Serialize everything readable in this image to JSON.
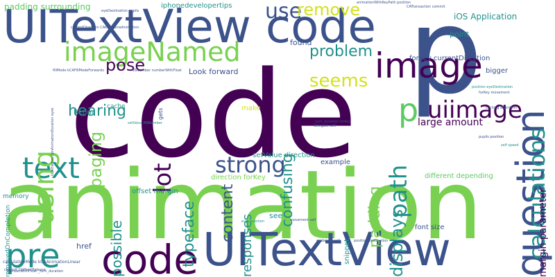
{
  "palette": {
    "dark_purple": "#440154",
    "indigo": "#3b528b",
    "teal": "#21918c",
    "green": "#5ec962",
    "lime": "#7ad151",
    "yellow": "#d2e21b"
  },
  "words": [
    {
      "text": "animation",
      "color": "#7ad151",
      "size": 138,
      "vertical": false
    },
    {
      "text": "code",
      "color": "#440154",
      "size": 172,
      "vertical": false
    },
    {
      "text": "p",
      "color": "#3b528b",
      "size": 170,
      "vertical": false
    },
    {
      "text": "UITextView code",
      "color": "#3b528b",
      "size": 66,
      "vertical": false
    },
    {
      "text": "UITextView",
      "color": "#3b528b",
      "size": 66,
      "vertical": false
    },
    {
      "text": "code",
      "color": "#440154",
      "size": 58,
      "vertical": false
    },
    {
      "text": "image",
      "color": "#440154",
      "size": 50,
      "vertical": false
    },
    {
      "text": "question",
      "color": "#3b528b",
      "size": 56,
      "vertical": true
    },
    {
      "text": "calculations",
      "color": "#21918c",
      "size": 32,
      "vertical": true
    },
    {
      "text": "imageNamed",
      "color": "#7ad151",
      "size": 38,
      "vertical": false
    },
    {
      "text": "text",
      "color": "#21918c",
      "size": 42,
      "vertical": false
    },
    {
      "text": "using",
      "color": "#7ad151",
      "size": 40,
      "vertical": true
    },
    {
      "text": "pre",
      "color": "#21918c",
      "size": 48,
      "vertical": false
    },
    {
      "text": "p",
      "color": "#5ec962",
      "size": 46,
      "vertical": false
    },
    {
      "text": "uiimage",
      "color": "#440154",
      "size": 34,
      "vertical": false
    },
    {
      "text": "path",
      "color": "#21918c",
      "size": 34,
      "vertical": true
    },
    {
      "text": "strong",
      "color": "#3b528b",
      "size": 32,
      "vertical": false
    },
    {
      "text": "use",
      "color": "#3b528b",
      "size": 30,
      "vertical": false
    },
    {
      "text": "remove",
      "color": "#d2e21b",
      "size": 24,
      "vertical": false
    },
    {
      "text": "seems",
      "color": "#d2e21b",
      "size": 26,
      "vertical": false
    },
    {
      "text": "problem",
      "color": "#21918c",
      "size": 22,
      "vertical": false
    },
    {
      "text": "pose",
      "color": "#440154",
      "size": 24,
      "vertical": false
    },
    {
      "text": "paging",
      "color": "#7ad151",
      "size": 24,
      "vertical": true
    },
    {
      "text": "hearing",
      "color": "#21918c",
      "size": 22,
      "vertical": false
    },
    {
      "text": "lot",
      "color": "#440154",
      "size": 34,
      "vertical": true
    },
    {
      "text": "confusing",
      "color": "#21918c",
      "size": 22,
      "vertical": true
    },
    {
      "text": "content",
      "color": "#3b528b",
      "size": 22,
      "vertical": true
    },
    {
      "text": "typeface",
      "color": "#21918c",
      "size": 22,
      "vertical": true
    },
    {
      "text": "padding",
      "color": "#7ad151",
      "size": 22,
      "vertical": true
    },
    {
      "text": "displays",
      "color": "#21918c",
      "size": 24,
      "vertical": true
    },
    {
      "text": "responses",
      "color": "#21918c",
      "size": 18,
      "vertical": true
    },
    {
      "text": "possible",
      "color": "#21918c",
      "size": 20,
      "vertical": true
    },
    {
      "text": "margin parameter",
      "color": "#440154",
      "size": 14,
      "vertical": true
    },
    {
      "text": "large amount",
      "color": "#440154",
      "size": 14,
      "vertical": false
    },
    {
      "text": "iOS Application",
      "color": "#21918c",
      "size": 12,
      "vertical": false
    },
    {
      "text": "padding surrounding",
      "color": "#5ec962",
      "size": 12,
      "vertical": false
    },
    {
      "text": "iphonedevelopertips",
      "color": "#21918c",
      "size": 10,
      "vertical": false
    },
    {
      "text": "point",
      "color": "#21918c",
      "size": 11,
      "vertical": false
    },
    {
      "text": "found",
      "color": "#3b528b",
      "size": 11,
      "vertical": false
    },
    {
      "text": "Look forward",
      "color": "#3b528b",
      "size": 11,
      "vertical": false
    },
    {
      "text": "forKey currentDirection",
      "color": "#3b528b",
      "size": 10,
      "vertical": false
    },
    {
      "text": "bigger",
      "color": "#3b528b",
      "size": 10,
      "vertical": false
    },
    {
      "text": "Retina",
      "color": "#21918c",
      "size": 10,
      "vertical": false
    },
    {
      "text": "cache",
      "color": "#21918c",
      "size": 9,
      "vertical": false
    },
    {
      "text": "make",
      "color": "#d2e21b",
      "size": 10,
      "vertical": false
    },
    {
      "text": "setValue direction",
      "color": "#21918c",
      "size": 10,
      "vertical": false
    },
    {
      "text": "example",
      "color": "#3b528b",
      "size": 10,
      "vertical": false
    },
    {
      "text": "direction forKey",
      "color": "#7ad151",
      "size": 10,
      "vertical": false
    },
    {
      "text": "different depending",
      "color": "#5ec962",
      "size": 10,
      "vertical": false
    },
    {
      "text": "offset margin",
      "color": "#21918c",
      "size": 10,
      "vertical": false
    },
    {
      "text": "see",
      "color": "#21918c",
      "size": 11,
      "vertical": false
    },
    {
      "text": "font size",
      "color": "#3b528b",
      "size": 10,
      "vertical": false
    },
    {
      "text": "href",
      "color": "#3b528b",
      "size": 11,
      "vertical": false
    },
    {
      "text": "memory",
      "color": "#21918c",
      "size": 9,
      "vertical": false
    },
    {
      "text": "removedOnCompletion",
      "color": "#21918c",
      "size": 9,
      "vertical": true
    },
    {
      "text": "snippet",
      "color": "#21918c",
      "size": 10,
      "vertical": true
    },
    {
      "text": "gets",
      "color": "#3b528b",
      "size": 8,
      "vertical": true
    },
    {
      "text": "calculationMode kCAAnimationLinear",
      "color": "#3b528b",
      "size": 6,
      "vertical": false
    },
    {
      "text": "numberWithFloat _turn_duration",
      "color": "#3b528b",
      "size": 5,
      "vertical": false
    },
    {
      "text": "caching algorithm",
      "color": "#3b528b",
      "size": 5,
      "vertical": false
    },
    {
      "text": "pupils position",
      "color": "#3b528b",
      "size": 5,
      "vertical": false
    },
    {
      "text": "self speed",
      "color": "#21918c",
      "size": 5,
      "vertical": false
    },
    {
      "text": "delegate self",
      "color": "#3b528b",
      "size": 5,
      "vertical": false
    },
    {
      "text": "_turn_duration forKey",
      "color": "#3b528b",
      "size": 5,
      "vertical": false
    },
    {
      "text": "eyes position",
      "color": "#21918c",
      "size": 5,
      "vertical": false
    },
    {
      "text": "movement self",
      "color": "#3b528b",
      "size": 5,
      "vertical": false
    },
    {
      "text": "gridwidth self",
      "color": "#3b528b",
      "size": 5,
      "vertical": false
    },
    {
      "text": "position destination",
      "color": "#3b528b",
      "size": 5,
      "vertical": false
    },
    {
      "text": "CATransaction commit",
      "color": "#3b528b",
      "size": 5,
      "vertical": false
    },
    {
      "text": "position eyeDestination",
      "color": "#21918c",
      "size": 5,
      "vertical": false
    },
    {
      "text": "forKey movement",
      "color": "#3b528b",
      "size": 5,
      "vertical": false
    },
    {
      "text": "animationWithKeyPath position",
      "color": "#3b528b",
      "size": 5,
      "vertical": false
    },
    {
      "text": "eyeDestination pupils",
      "color": "#3b528b",
      "size": 5,
      "vertical": false
    },
    {
      "text": "currentDirection CAKeyframeAnimation",
      "color": "#3b528b",
      "size": 5,
      "vertical": false
    },
    {
      "text": "fillMode kCAFillModeForwards",
      "color": "#3b528b",
      "size": 5,
      "vertical": false
    },
    {
      "text": "NSNumber numberWithFloat",
      "color": "#3b528b",
      "size": 5,
      "vertical": false
    },
    {
      "text": "commit CGPointRelease",
      "color": "#3b528b",
      "size": 5,
      "vertical": false
    },
    {
      "text": "setValue NSNumber",
      "color": "#21918c",
      "size": 5,
      "vertical": false
    },
    {
      "text": "kCATransactionAnimationDuration eyes",
      "color": "#3b528b",
      "size": 5,
      "vertical": true
    }
  ]
}
